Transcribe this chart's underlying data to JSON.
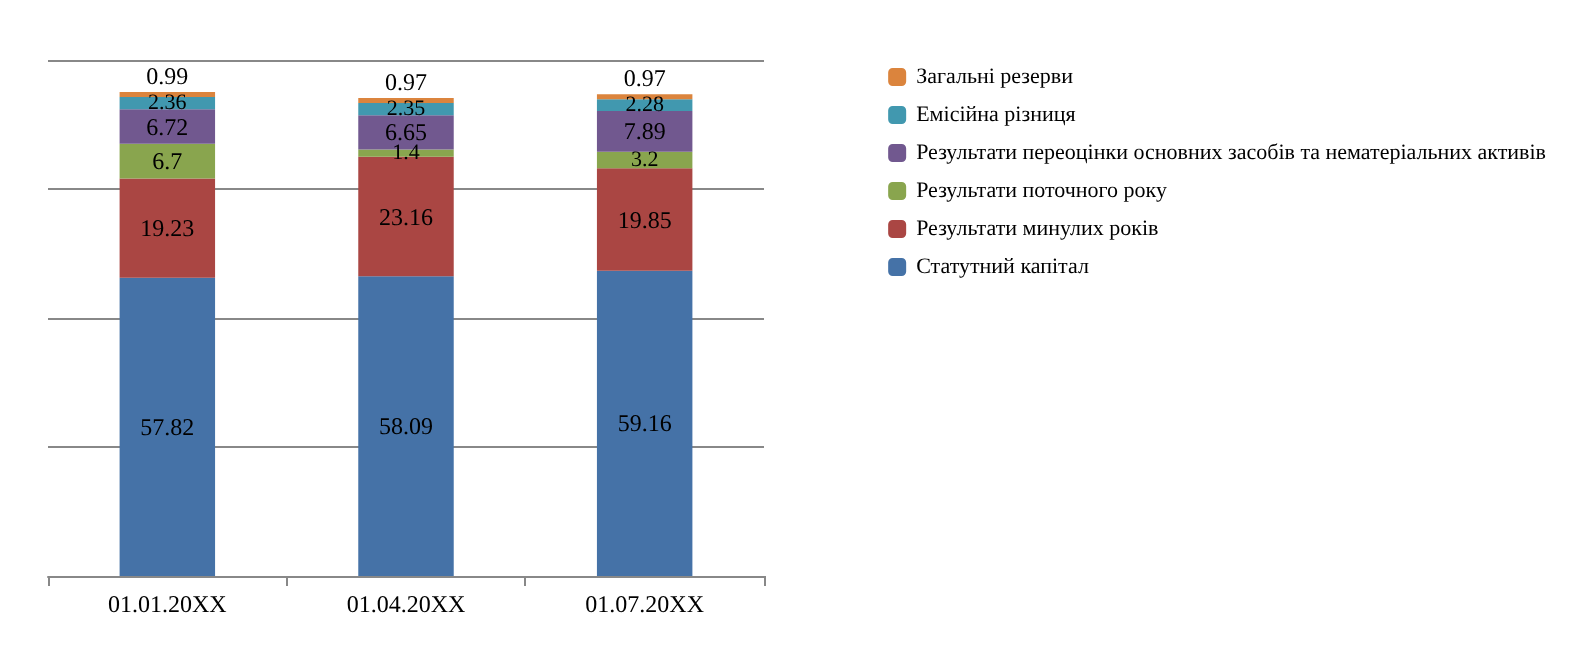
{
  "chart_data": {
    "type": "bar",
    "stacked": true,
    "categories": [
      "01.01.20XX",
      "01.04.20XX",
      "01.07.20XX"
    ],
    "ylim": [
      0,
      100
    ],
    "yticks": [
      0,
      25,
      50,
      75,
      100
    ],
    "grid": "y",
    "tick_labels": "x",
    "data_labels": true,
    "legend": "right",
    "series": [
      {
        "name": "Статутний капітал",
        "color": "#4572a7",
        "values": [
          57.82,
          58.09,
          59.16
        ]
      },
      {
        "name": "Результати минулих років",
        "color": "#aa4643",
        "values": [
          19.23,
          23.16,
          19.85
        ]
      },
      {
        "name": "Результати поточного року",
        "color": "#89a54e",
        "values": [
          6.7,
          1.4,
          3.2
        ]
      },
      {
        "name": "Результати переоцінки основних засобів та нематеріальних активів",
        "color": "#71588f",
        "values": [
          6.72,
          6.65,
          7.89
        ]
      },
      {
        "name": "Емісійна різниця",
        "color": "#4198af",
        "values": [
          2.36,
          2.35,
          2.28
        ]
      },
      {
        "name": "Загальні резерви",
        "color": "#db843d",
        "values": [
          0.99,
          0.97,
          0.97
        ]
      }
    ]
  }
}
